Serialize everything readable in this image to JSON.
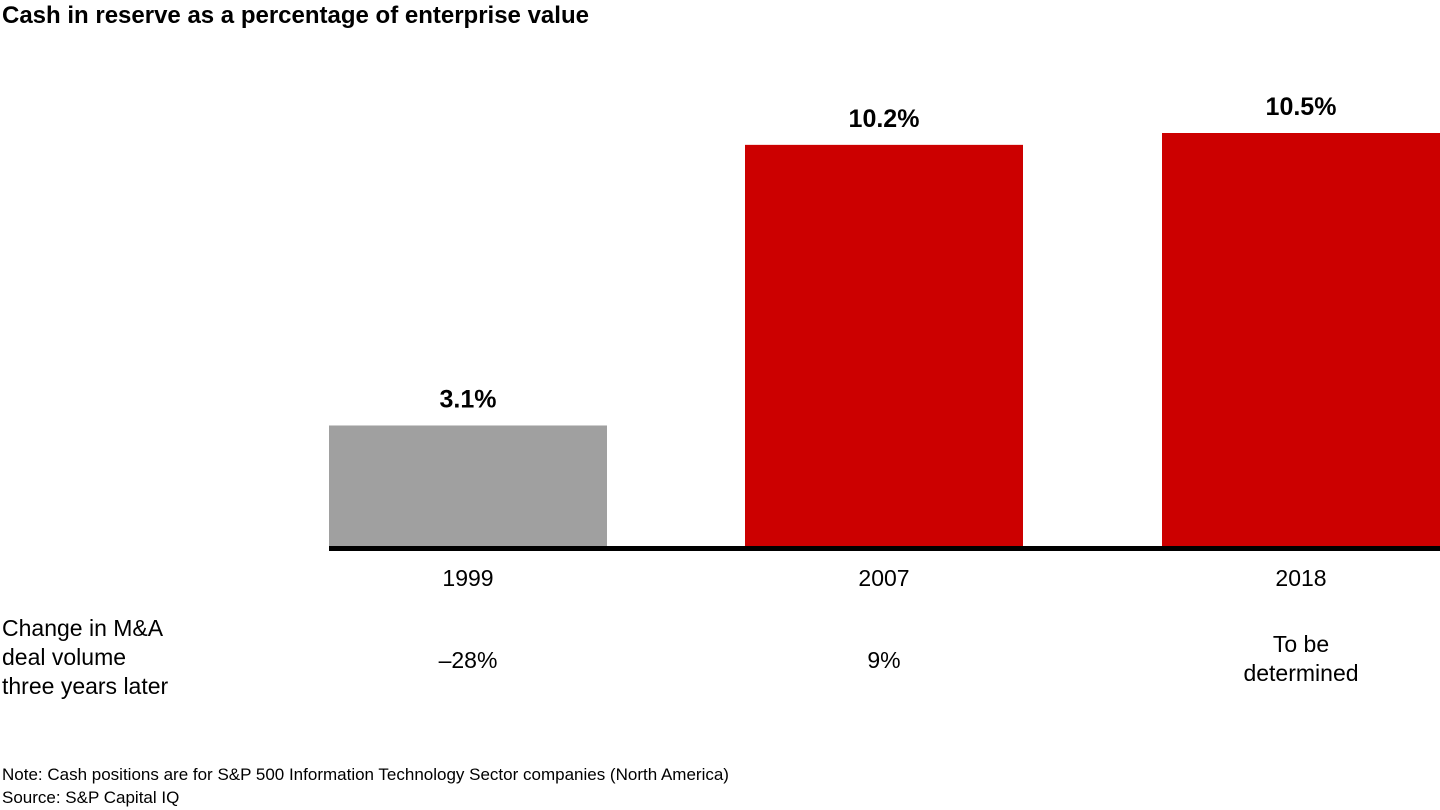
{
  "chart_data": {
    "type": "bar",
    "title": "Cash in reserve as a percentage of enterprise value",
    "categories": [
      "1999",
      "2007",
      "2018"
    ],
    "values": [
      3.1,
      10.2,
      10.5
    ],
    "value_labels": [
      "3.1%",
      "10.2%",
      "10.5%"
    ],
    "colors": [
      "#a0a0a0",
      "#cc0000",
      "#cc0000"
    ],
    "xlabel": "",
    "ylabel": "",
    "ylim": [
      0,
      10.5
    ],
    "grid": false,
    "legend": "none"
  },
  "table_row": {
    "label_lines": [
      "Change in M&A",
      "deal volume",
      "three years later"
    ],
    "values": [
      [
        "–28%"
      ],
      [
        "9%"
      ],
      [
        "To be",
        "determined"
      ]
    ]
  },
  "footer": {
    "note": "Note: Cash positions are for S&P 500 Information Technology Sector companies (North America)",
    "source": "Source: S&P Capital IQ"
  }
}
